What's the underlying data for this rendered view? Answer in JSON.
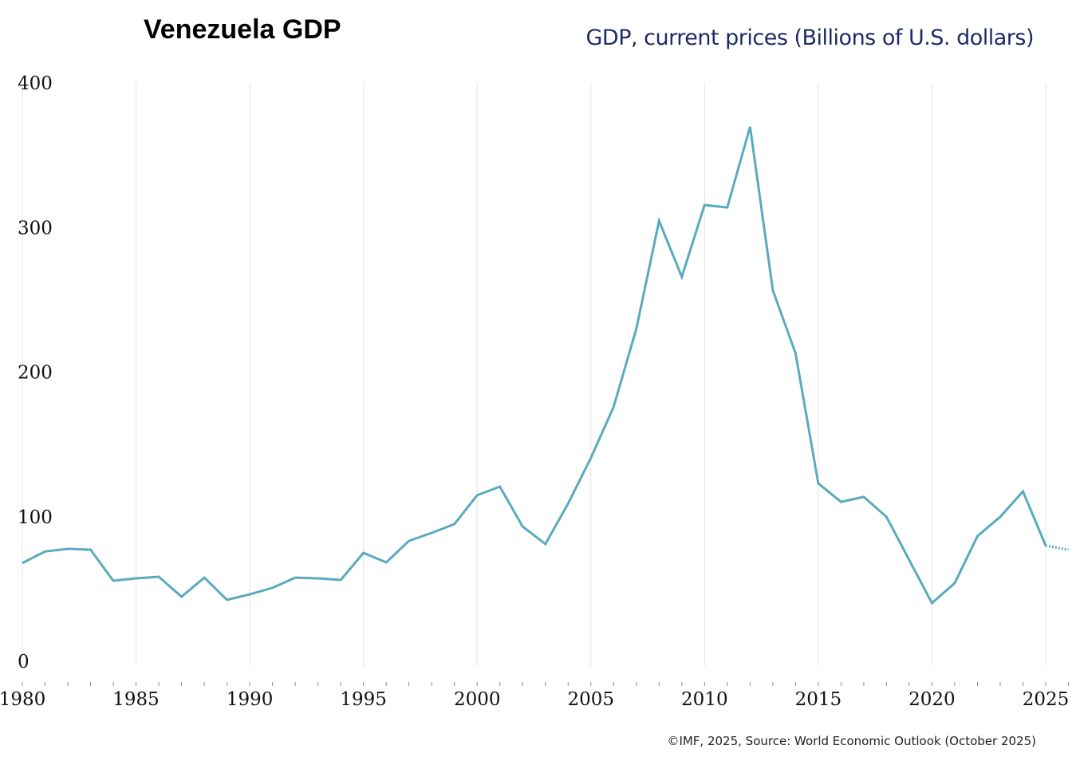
{
  "title": "Venezuela GDP",
  "subtitle": "GDP, current prices (Billions of U.S. dollars)",
  "source": "©IMF, 2025, Source: World Economic Outlook (October 2025)",
  "chart_data": {
    "type": "line",
    "title": "Venezuela GDP",
    "ylabel": "GDP, current prices (Billions of U.S. dollars)",
    "xlim": [
      1980,
      2026
    ],
    "ylim": [
      0,
      400
    ],
    "grid": "vertical",
    "x_ticks": [
      "1980",
      "1985",
      "1990",
      "1995",
      "2000",
      "2005",
      "2010",
      "2015",
      "2020",
      "2025"
    ],
    "y_ticks": [
      "0",
      "100",
      "200",
      "300",
      "400"
    ],
    "color": "#5aabbd",
    "x": [
      1980,
      1981,
      1982,
      1983,
      1984,
      1985,
      1986,
      1987,
      1988,
      1989,
      1990,
      1991,
      1992,
      1993,
      1994,
      1995,
      1996,
      1997,
      1998,
      1999,
      2000,
      2001,
      2002,
      2003,
      2004,
      2005,
      2006,
      2007,
      2008,
      2009,
      2010,
      2011,
      2012,
      2013,
      2014,
      2015,
      2016,
      2017,
      2018,
      2019,
      2020,
      2021,
      2022,
      2023,
      2024,
      2025,
      2026
    ],
    "values": [
      68,
      76,
      77.8,
      77.2,
      55.7,
      57.4,
      58.5,
      44.7,
      57.9,
      42.5,
      46.3,
      50.8,
      57.9,
      57.4,
      56.3,
      75,
      68.4,
      83.3,
      88.8,
      94.9,
      114.8,
      120.8,
      93.2,
      81.1,
      109.2,
      140.7,
      176,
      230,
      304.6,
      265.9,
      315.6,
      313.9,
      369.7,
      256.6,
      213,
      123,
      110.3,
      113.7,
      99.9,
      70,
      40.3,
      54.1,
      86.6,
      99.9,
      117.5,
      80,
      77.2
    ],
    "projection_from": 2025
  }
}
